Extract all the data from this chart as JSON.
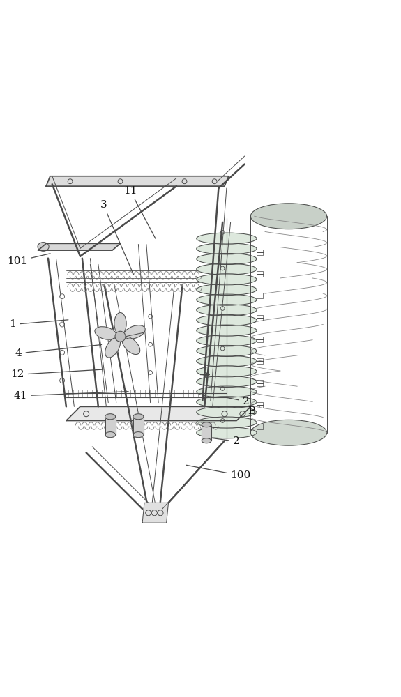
{
  "bg_color": "#ffffff",
  "line_color": "#4a4a4a",
  "light_line_color": "#888888",
  "very_light_color": "#aaaaaa",
  "figsize": [
    5.75,
    10.0
  ],
  "dpi": 100
}
